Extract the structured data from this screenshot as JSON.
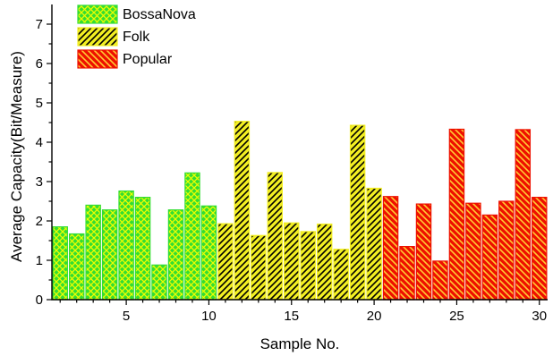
{
  "chart_data": {
    "type": "bar",
    "xlabel": "Sample No.",
    "ylabel": "Average Capacity(Bit/Measure)",
    "xlim": [
      0.5,
      30.5
    ],
    "ylim": [
      0,
      7.5
    ],
    "x_ticks": [
      5,
      10,
      15,
      20,
      25,
      30
    ],
    "y_ticks": [
      0,
      1,
      2,
      3,
      4,
      5,
      6,
      7
    ],
    "legend_position": "top-left",
    "grid": false,
    "series": [
      {
        "name": "BossaNova",
        "color": "#33dd33",
        "hatch_color": "#eeff00",
        "pattern": "cross-hatch",
        "x": [
          1,
          2,
          3,
          4,
          5,
          6,
          7,
          8,
          9,
          10
        ],
        "values": [
          1.85,
          1.67,
          2.4,
          2.28,
          2.76,
          2.6,
          0.88,
          2.28,
          3.22,
          2.38
        ]
      },
      {
        "name": "Folk",
        "color": "#f2ee22",
        "hatch_color": "#000000",
        "pattern": "diagonal",
        "x": [
          11,
          12,
          13,
          14,
          15,
          16,
          17,
          18,
          19,
          20
        ],
        "values": [
          1.93,
          4.53,
          1.63,
          3.23,
          1.95,
          1.73,
          1.92,
          1.28,
          4.43,
          2.83
        ]
      },
      {
        "name": "Popular",
        "color": "#ee1100",
        "hatch_color": "#ffcc33",
        "pattern": "back-diagonal",
        "x": [
          21,
          22,
          23,
          24,
          25,
          26,
          27,
          28,
          29,
          30
        ],
        "values": [
          2.62,
          1.35,
          2.43,
          0.98,
          4.33,
          2.45,
          2.15,
          2.5,
          4.32,
          2.6
        ]
      }
    ]
  }
}
